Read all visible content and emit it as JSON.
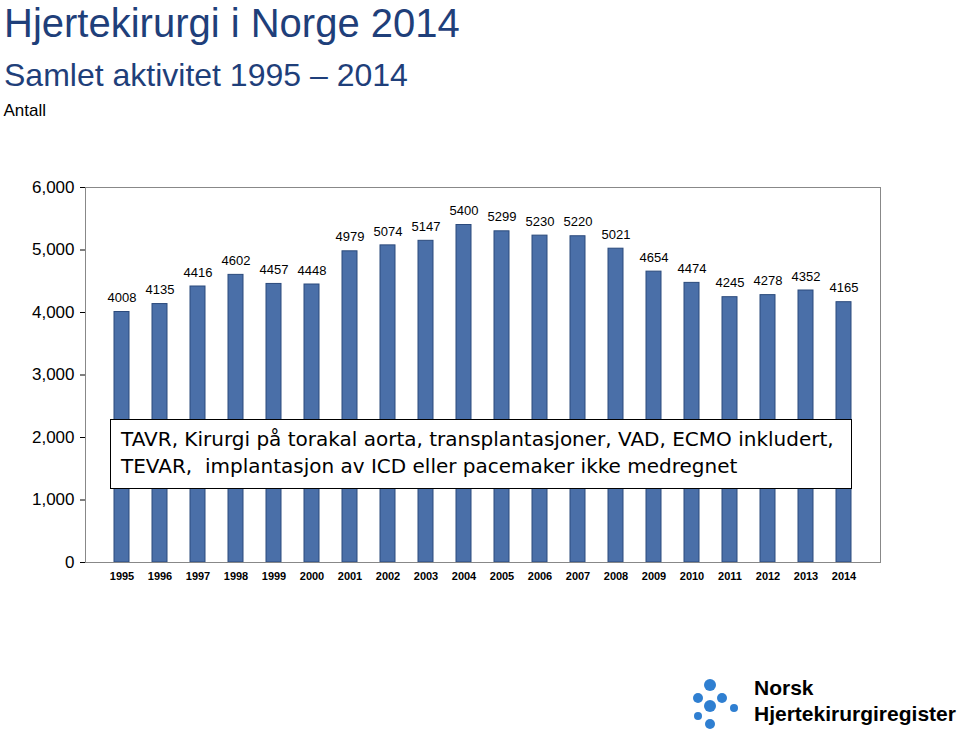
{
  "chart_data": {
    "type": "bar",
    "title": "Hjertekirurgi i Norge 2014",
    "subtitle": "Samlet aktivitet 1995 – 2014",
    "y_label": "Antall",
    "categories": [
      1995,
      1996,
      1997,
      1998,
      1999,
      2000,
      2001,
      2002,
      2003,
      2004,
      2005,
      2006,
      2007,
      2008,
      2009,
      2010,
      2011,
      2012,
      2013,
      2014
    ],
    "values": [
      4008,
      4135,
      4416,
      4602,
      4457,
      4448,
      4979,
      5074,
      5147,
      5400,
      5299,
      5230,
      5220,
      5021,
      4654,
      4474,
      4245,
      4278,
      4352,
      4165
    ],
    "color": "#4a6fa8",
    "ylim": [
      0,
      6000
    ],
    "yticks": [
      0,
      1000,
      2000,
      3000,
      4000,
      5000,
      6000
    ],
    "grid": false,
    "data_labels": true,
    "annotations": [
      "TAVR, Kirurgi på torakal aorta, transplantasjoner, VAD, ECMO inkludert,",
      "TEVAR,  implantasjon av ICD eller pacemaker ikke medregnet"
    ],
    "footer": [
      "Norsk",
      "Hjertekirurgiregister"
    ]
  }
}
